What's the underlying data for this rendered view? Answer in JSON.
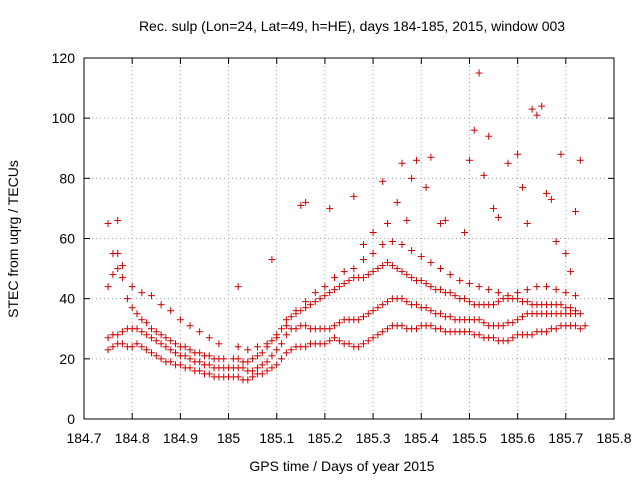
{
  "chart_data": {
    "type": "scatter",
    "title": "Rec. sulp (Lon=24, Lat=49, h=HE), days 184-185, 2015, window 003",
    "xlabel": "GPS time / Days of year 2015",
    "ylabel": "STEC from uqrg / TECUs",
    "xlim": [
      184.7,
      185.8
    ],
    "ylim": [
      0,
      120
    ],
    "xticks": [
      "184.7",
      "184.8",
      "184.9",
      "185",
      "185.1",
      "185.2",
      "185.3",
      "185.4",
      "185.5",
      "185.6",
      "185.7",
      "185.8"
    ],
    "yticks": [
      "0",
      "20",
      "40",
      "60",
      "80",
      "100",
      "120"
    ],
    "grid": true,
    "marker": "plus",
    "color": "#cc0000",
    "series": [
      {
        "x": [
          184.75,
          184.76,
          184.77,
          184.78,
          184.79,
          184.8,
          184.81,
          184.82,
          184.83,
          184.84,
          184.85,
          184.86,
          184.87,
          184.88,
          184.89,
          184.9,
          184.91,
          184.92,
          184.93,
          184.94,
          184.95,
          184.96,
          184.97,
          184.98,
          184.99,
          185.0,
          185.01,
          185.02,
          185.03,
          185.04,
          185.05,
          185.06,
          185.07,
          185.08,
          185.09,
          185.1,
          185.11,
          185.12,
          185.13,
          185.14,
          185.15,
          185.16,
          185.17,
          185.18,
          185.19,
          185.2,
          185.21,
          185.22,
          185.23,
          185.24,
          185.25,
          185.26,
          185.27,
          185.28,
          185.29,
          185.3,
          185.31,
          185.32,
          185.33,
          185.34,
          185.35,
          185.36,
          185.37,
          185.38,
          185.39,
          185.4,
          185.41,
          185.42,
          185.43,
          185.44,
          185.45,
          185.46,
          185.47,
          185.48,
          185.49,
          185.5,
          185.51,
          185.52,
          185.53,
          185.54,
          185.55,
          185.56,
          185.57,
          185.58,
          185.59,
          185.6,
          185.61,
          185.62,
          185.63,
          185.64,
          185.65,
          185.66,
          185.67,
          185.68,
          185.69,
          185.7,
          185.71,
          185.72,
          185.73,
          185.74
        ],
        "y": [
          23,
          24,
          25,
          25,
          24,
          24,
          25,
          24,
          23,
          22,
          21,
          20,
          19,
          19,
          18,
          18,
          17,
          17,
          16,
          16,
          15,
          15,
          14,
          14,
          14,
          14,
          14,
          14,
          13,
          13,
          14,
          15,
          15,
          16,
          17,
          18,
          20,
          22,
          23,
          24,
          24,
          24,
          25,
          25,
          25,
          25,
          26,
          27,
          26,
          25,
          25,
          24,
          24,
          25,
          26,
          27,
          28,
          29,
          30,
          31,
          31,
          31,
          30,
          30,
          30,
          31,
          31,
          31,
          30,
          30,
          29,
          29,
          29,
          29,
          29,
          29,
          28,
          28,
          27,
          27,
          27,
          26,
          26,
          26,
          27,
          28,
          28,
          28,
          28,
          29,
          29,
          29,
          30,
          30,
          31,
          31,
          31,
          31,
          30,
          31
        ]
      },
      {
        "x": [
          184.75,
          184.76,
          184.77,
          184.78,
          184.79,
          184.8,
          184.81,
          184.82,
          184.83,
          184.84,
          184.85,
          184.86,
          184.87,
          184.88,
          184.89,
          184.9,
          184.91,
          184.92,
          184.93,
          184.94,
          184.95,
          184.96,
          184.97,
          184.98,
          184.99,
          185.0,
          185.01,
          185.02,
          185.03,
          185.04,
          185.05,
          185.06,
          185.07,
          185.08,
          185.09,
          185.1,
          185.11,
          185.12,
          185.13,
          185.14,
          185.15,
          185.16,
          185.17,
          185.18,
          185.19,
          185.2,
          185.21,
          185.22,
          185.23,
          185.24,
          185.25,
          185.26,
          185.27,
          185.28,
          185.29,
          185.3,
          185.31,
          185.32,
          185.33,
          185.34,
          185.35,
          185.36,
          185.37,
          185.38,
          185.39,
          185.4,
          185.41,
          185.42,
          185.43,
          185.44,
          185.45,
          185.46,
          185.47,
          185.48,
          185.49,
          185.5,
          185.51,
          185.52,
          185.53,
          185.54,
          185.55,
          185.56,
          185.57,
          185.58,
          185.59,
          185.6,
          185.61,
          185.62,
          185.63,
          185.64,
          185.65,
          185.66,
          185.67,
          185.68,
          185.69,
          185.7,
          185.71,
          185.72,
          185.73
        ],
        "y": [
          27,
          28,
          28,
          29,
          30,
          30,
          30,
          29,
          28,
          27,
          26,
          25,
          24,
          23,
          22,
          21,
          21,
          20,
          19,
          19,
          18,
          18,
          17,
          17,
          17,
          17,
          17,
          17,
          17,
          16,
          16,
          17,
          18,
          19,
          21,
          23,
          25,
          28,
          30,
          30,
          31,
          31,
          30,
          30,
          30,
          30,
          30,
          31,
          32,
          33,
          33,
          33,
          33,
          34,
          35,
          36,
          37,
          38,
          39,
          40,
          40,
          40,
          39,
          38,
          38,
          37,
          37,
          36,
          35,
          35,
          34,
          34,
          33,
          33,
          33,
          33,
          33,
          33,
          32,
          31,
          31,
          31,
          31,
          32,
          32,
          33,
          34,
          35,
          35,
          35,
          35,
          35,
          35,
          35,
          35,
          35,
          35,
          35,
          35
        ]
      },
      {
        "x": [
          184.75,
          184.76,
          184.77,
          184.78,
          184.79,
          184.8,
          184.81,
          184.82,
          184.83,
          184.84,
          184.85,
          184.86,
          184.87,
          184.88,
          184.89,
          184.9,
          184.91,
          184.92,
          184.93,
          184.94,
          184.95,
          184.96,
          184.97,
          184.98,
          184.99,
          185.01,
          185.02,
          185.03,
          185.04,
          185.05,
          185.06,
          185.07,
          185.08,
          185.09,
          185.1,
          185.11,
          185.12,
          185.13,
          185.14,
          185.15,
          185.16,
          185.17,
          185.18,
          185.19,
          185.2,
          185.21,
          185.22,
          185.23,
          185.24,
          185.25,
          185.26,
          185.27,
          185.28,
          185.29,
          185.3,
          185.31,
          185.32,
          185.33,
          185.34,
          185.35,
          185.36,
          185.37,
          185.38,
          185.39,
          185.4,
          185.41,
          185.42,
          185.43,
          185.44,
          185.45,
          185.46,
          185.47,
          185.48,
          185.49,
          185.5,
          185.51,
          185.52,
          185.53,
          185.54,
          185.55,
          185.56,
          185.57,
          185.58,
          185.59,
          185.6,
          185.61,
          185.62,
          185.63,
          185.64,
          185.65,
          185.66,
          185.67,
          185.68,
          185.69,
          185.7,
          185.71,
          185.72
        ],
        "y": [
          44,
          48,
          50,
          47,
          40,
          37,
          35,
          33,
          32,
          30,
          29,
          28,
          27,
          26,
          25,
          24,
          24,
          23,
          22,
          22,
          21,
          21,
          20,
          20,
          20,
          20,
          20,
          19,
          19,
          20,
          21,
          22,
          24,
          26,
          28,
          30,
          33,
          34,
          35,
          36,
          37,
          38,
          39,
          40,
          41,
          42,
          43,
          44,
          45,
          46,
          47,
          47,
          47,
          48,
          49,
          50,
          51,
          52,
          51,
          50,
          49,
          48,
          47,
          46,
          46,
          45,
          44,
          43,
          43,
          42,
          42,
          41,
          40,
          40,
          39,
          38,
          38,
          38,
          38,
          38,
          39,
          40,
          40,
          40,
          40,
          39,
          39,
          38,
          38,
          38,
          38,
          38,
          38,
          38,
          37,
          37,
          36
        ]
      },
      {
        "x": [
          184.76,
          184.77,
          184.78,
          184.8,
          184.82,
          184.84,
          184.86,
          184.88,
          184.9,
          184.92,
          184.94,
          184.96,
          184.98,
          185.02,
          185.04,
          185.06,
          185.08,
          185.1,
          185.12,
          185.14,
          185.16,
          185.18,
          185.2,
          185.22,
          185.24,
          185.26,
          185.28,
          185.3,
          185.32,
          185.34,
          185.36,
          185.38,
          185.4,
          185.42,
          185.44,
          185.46,
          185.48,
          185.5,
          185.52,
          185.54,
          185.56,
          185.58,
          185.6,
          185.62,
          185.64,
          185.66,
          185.68,
          185.7,
          185.72
        ],
        "y": [
          55,
          55,
          51,
          44,
          42,
          41,
          38,
          36,
          33,
          31,
          29,
          27,
          25,
          24,
          23,
          24,
          25,
          27,
          31,
          36,
          39,
          42,
          44,
          47,
          49,
          50,
          53,
          55,
          58,
          59,
          58,
          56,
          54,
          52,
          50,
          48,
          46,
          45,
          44,
          43,
          42,
          41,
          42,
          43,
          44,
          44,
          43,
          42,
          41
        ]
      },
      {
        "x": [
          184.75,
          184.77,
          185.02,
          185.09,
          185.15,
          185.16,
          185.21,
          185.26,
          185.28,
          185.3,
          185.32,
          185.33,
          185.35,
          185.36,
          185.37,
          185.38,
          185.39,
          185.41,
          185.42,
          185.44,
          185.45,
          185.49,
          185.5,
          185.51,
          185.52,
          185.53,
          185.54,
          185.55,
          185.56,
          185.58,
          185.6,
          185.61,
          185.62,
          185.63,
          185.64,
          185.65,
          185.66,
          185.67,
          185.68,
          185.69,
          185.7,
          185.71,
          185.72,
          185.73
        ],
        "y": [
          65,
          66,
          44,
          53,
          71,
          72,
          70,
          74,
          58,
          62,
          79,
          65,
          72,
          85,
          66,
          80,
          86,
          77,
          87,
          65,
          66,
          62,
          86,
          96,
          115,
          81,
          94,
          70,
          67,
          85,
          88,
          77,
          65,
          103,
          101,
          104,
          75,
          73,
          59,
          88,
          55,
          49,
          69,
          86
        ]
      }
    ]
  }
}
